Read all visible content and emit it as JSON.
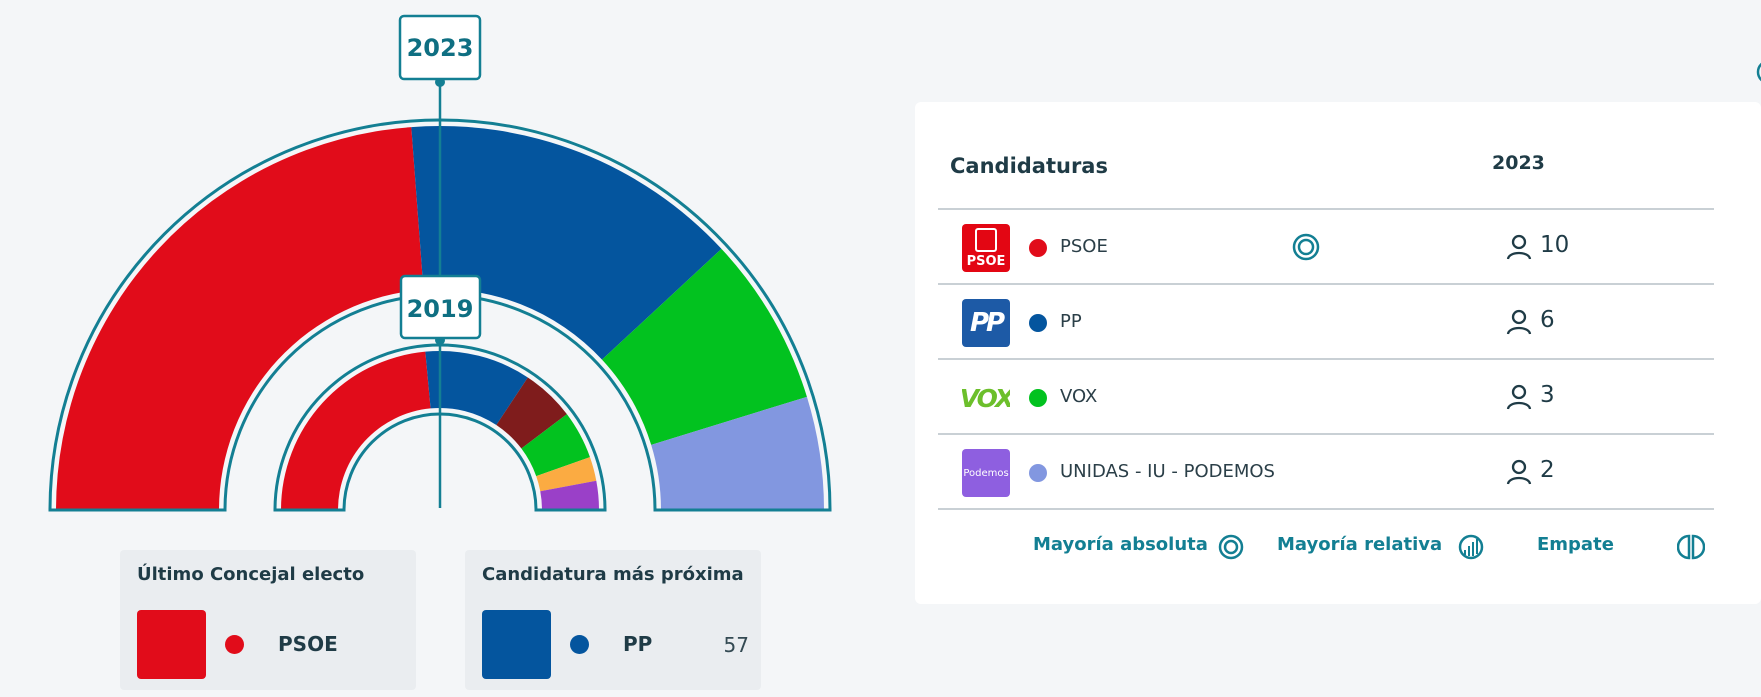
{
  "chart_data": [
    {
      "type": "pie",
      "variant": "half-donut",
      "title": "2023",
      "series": [
        {
          "name": "PSOE",
          "value": 10,
          "color": "#e10c1a"
        },
        {
          "name": "PP",
          "value": 6,
          "color": "#04559e"
        },
        {
          "name": "VOX",
          "value": 3,
          "color": "#02c21f"
        },
        {
          "name": "UNIDAS - IU - PODEMOS",
          "value": 2,
          "color": "#8297e0"
        }
      ]
    },
    {
      "type": "pie",
      "variant": "half-donut",
      "title": "2019",
      "series": [
        {
          "value": 48,
          "color": "#e10c1a"
        },
        {
          "value": 22,
          "color": "#04559e"
        },
        {
          "value": 11,
          "color": "#7f1c1c"
        },
        {
          "value": 10,
          "color": "#02c21f"
        },
        {
          "value": 5,
          "color": "#fbab42"
        },
        {
          "value": 6,
          "color": "#9a40c8"
        }
      ]
    }
  ],
  "colors": {
    "teal": "#137f93",
    "psoe": "#e10c1a",
    "pp": "#04559e",
    "vox": "#02c21f",
    "podemos": "#8297e0"
  },
  "ultimo_concejal": {
    "title": "Último Concejal electo",
    "party": "PSOE",
    "color": "#e10c1a"
  },
  "candidatura_proxima": {
    "title": "Candidatura más próxima",
    "party": "PP",
    "value": "57",
    "color": "#04559e"
  },
  "results": {
    "header_name": "Candidaturas",
    "header_year": "2023",
    "rows": [
      {
        "logo_text": "PSOE",
        "party": "PSOE",
        "seats": "10",
        "color": "#e10c1a",
        "icon": "absolute-majority-icon"
      },
      {
        "logo_text": "PP",
        "party": "PP",
        "seats": "6",
        "color": "#04559e"
      },
      {
        "logo_text": "VOX",
        "party": "VOX",
        "seats": "3",
        "color": "#02c21f"
      },
      {
        "logo_text": "Podemos",
        "party": "UNIDAS - IU - PODEMOS",
        "seats": "2",
        "color": "#8297e0"
      }
    ]
  },
  "legend": {
    "absolute": "Mayoría absoluta",
    "relative": "Mayoría relativa",
    "tie": "Empate"
  }
}
